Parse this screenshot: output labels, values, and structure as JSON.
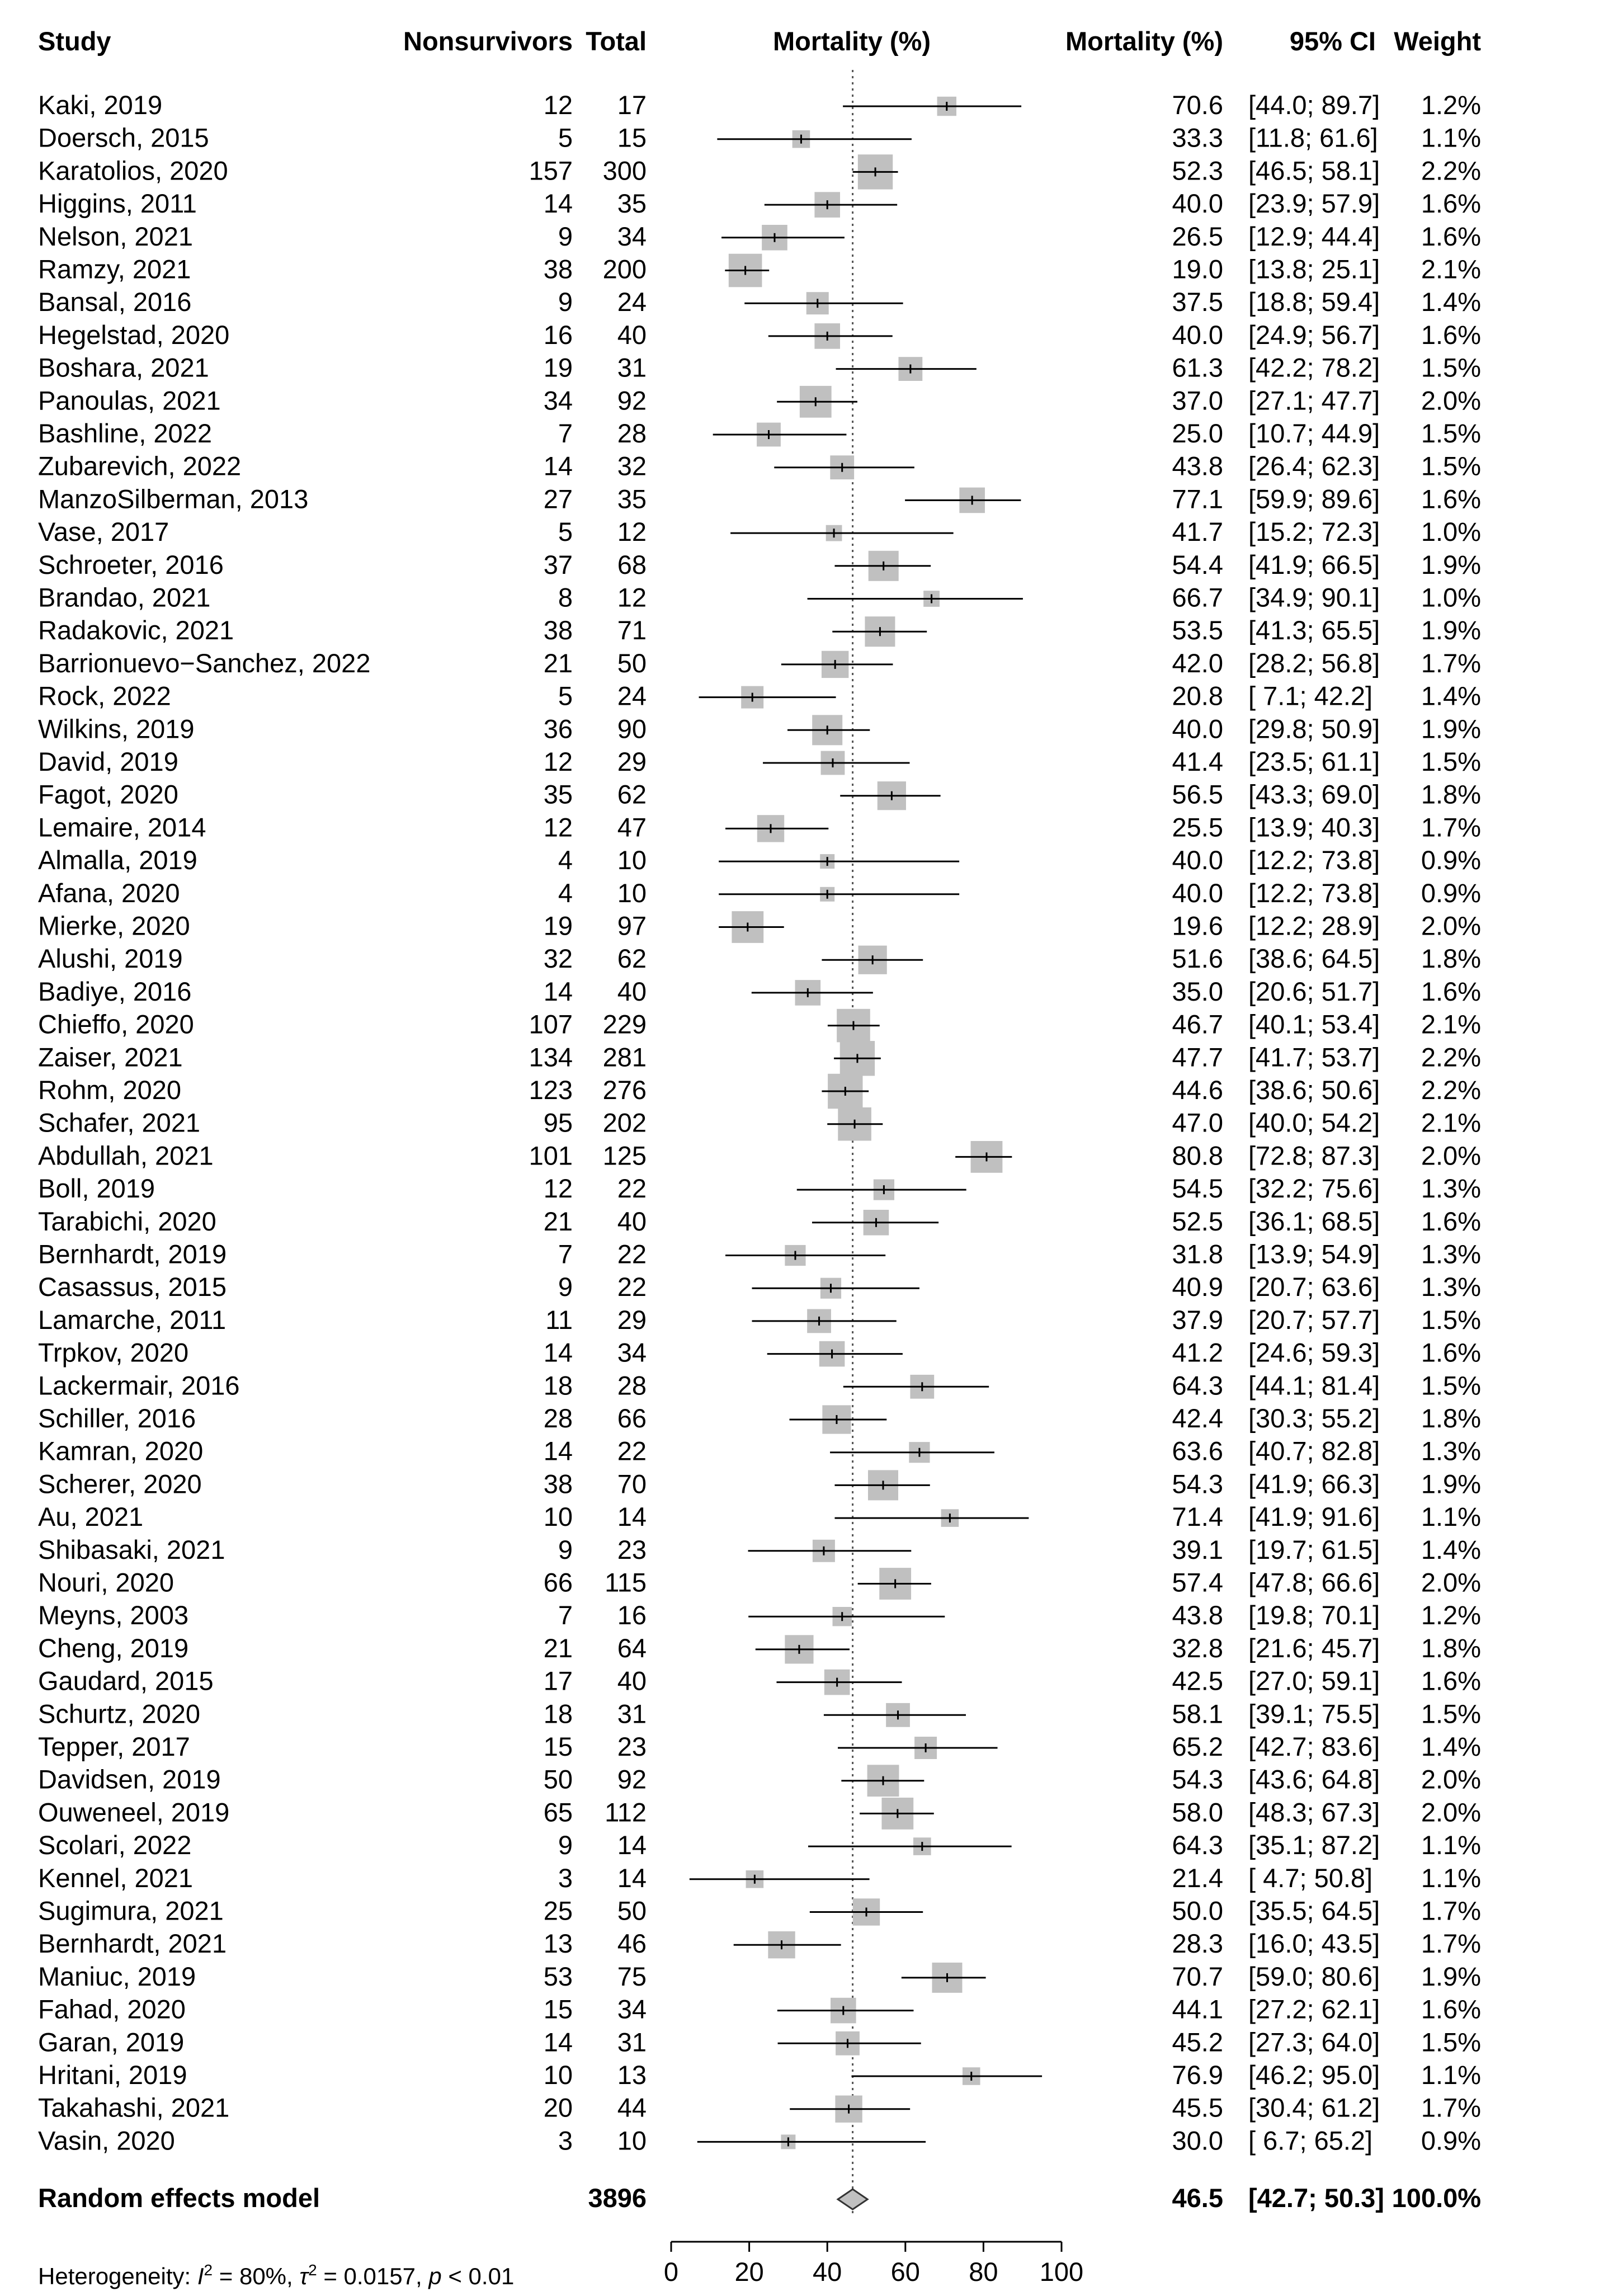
{
  "chart_data": {
    "type": "forest",
    "headers": {
      "study": "Study",
      "nonsurvivors": "Nonsurvivors",
      "total": "Total",
      "plot": "Mortality (%)",
      "estimate": "Mortality (%)",
      "ci": "95% CI",
      "weight": "Weight"
    },
    "x_axis": {
      "min": 0,
      "max": 100,
      "ticks": [
        0,
        20,
        40,
        60,
        80,
        100
      ],
      "reference_line": 46.5
    },
    "studies": [
      {
        "study": "Kaki, 2019",
        "events": "12",
        "total": "17",
        "est": 70.6,
        "lo": 44.0,
        "hi": 89.7,
        "est_text": "70.6",
        "ci_text": "[44.0; 89.7]",
        "weight_text": "1.2%"
      },
      {
        "study": "Doersch, 2015",
        "events": "5",
        "total": "15",
        "est": 33.3,
        "lo": 11.8,
        "hi": 61.6,
        "est_text": "33.3",
        "ci_text": "[11.8; 61.6]",
        "weight_text": "1.1%"
      },
      {
        "study": "Karatolios, 2020",
        "events": "157",
        "total": "300",
        "est": 52.3,
        "lo": 46.5,
        "hi": 58.1,
        "est_text": "52.3",
        "ci_text": "[46.5; 58.1]",
        "weight_text": "2.2%"
      },
      {
        "study": "Higgins, 2011",
        "events": "14",
        "total": "35",
        "est": 40.0,
        "lo": 23.9,
        "hi": 57.9,
        "est_text": "40.0",
        "ci_text": "[23.9; 57.9]",
        "weight_text": "1.6%"
      },
      {
        "study": "Nelson, 2021",
        "events": "9",
        "total": "34",
        "est": 26.5,
        "lo": 12.9,
        "hi": 44.4,
        "est_text": "26.5",
        "ci_text": "[12.9; 44.4]",
        "weight_text": "1.6%"
      },
      {
        "study": "Ramzy, 2021",
        "events": "38",
        "total": "200",
        "est": 19.0,
        "lo": 13.8,
        "hi": 25.1,
        "est_text": "19.0",
        "ci_text": "[13.8; 25.1]",
        "weight_text": "2.1%"
      },
      {
        "study": "Bansal, 2016",
        "events": "9",
        "total": "24",
        "est": 37.5,
        "lo": 18.8,
        "hi": 59.4,
        "est_text": "37.5",
        "ci_text": "[18.8; 59.4]",
        "weight_text": "1.4%"
      },
      {
        "study": "Hegelstad, 2020",
        "events": "16",
        "total": "40",
        "est": 40.0,
        "lo": 24.9,
        "hi": 56.7,
        "est_text": "40.0",
        "ci_text": "[24.9; 56.7]",
        "weight_text": "1.6%"
      },
      {
        "study": "Boshara, 2021",
        "events": "19",
        "total": "31",
        "est": 61.3,
        "lo": 42.2,
        "hi": 78.2,
        "est_text": "61.3",
        "ci_text": "[42.2; 78.2]",
        "weight_text": "1.5%"
      },
      {
        "study": "Panoulas, 2021",
        "events": "34",
        "total": "92",
        "est": 37.0,
        "lo": 27.1,
        "hi": 47.7,
        "est_text": "37.0",
        "ci_text": "[27.1; 47.7]",
        "weight_text": "2.0%"
      },
      {
        "study": "Bashline, 2022",
        "events": "7",
        "total": "28",
        "est": 25.0,
        "lo": 10.7,
        "hi": 44.9,
        "est_text": "25.0",
        "ci_text": "[10.7; 44.9]",
        "weight_text": "1.5%"
      },
      {
        "study": "Zubarevich, 2022",
        "events": "14",
        "total": "32",
        "est": 43.8,
        "lo": 26.4,
        "hi": 62.3,
        "est_text": "43.8",
        "ci_text": "[26.4; 62.3]",
        "weight_text": "1.5%"
      },
      {
        "study": "ManzoSilberman, 2013",
        "events": "27",
        "total": "35",
        "est": 77.1,
        "lo": 59.9,
        "hi": 89.6,
        "est_text": "77.1",
        "ci_text": "[59.9; 89.6]",
        "weight_text": "1.6%"
      },
      {
        "study": "Vase, 2017",
        "events": "5",
        "total": "12",
        "est": 41.7,
        "lo": 15.2,
        "hi": 72.3,
        "est_text": "41.7",
        "ci_text": "[15.2; 72.3]",
        "weight_text": "1.0%"
      },
      {
        "study": "Schroeter, 2016",
        "events": "37",
        "total": "68",
        "est": 54.4,
        "lo": 41.9,
        "hi": 66.5,
        "est_text": "54.4",
        "ci_text": "[41.9; 66.5]",
        "weight_text": "1.9%"
      },
      {
        "study": "Brandao, 2021",
        "events": "8",
        "total": "12",
        "est": 66.7,
        "lo": 34.9,
        "hi": 90.1,
        "est_text": "66.7",
        "ci_text": "[34.9; 90.1]",
        "weight_text": "1.0%"
      },
      {
        "study": "Radakovic, 2021",
        "events": "38",
        "total": "71",
        "est": 53.5,
        "lo": 41.3,
        "hi": 65.5,
        "est_text": "53.5",
        "ci_text": "[41.3; 65.5]",
        "weight_text": "1.9%"
      },
      {
        "study": "Barrionuevo−Sanchez, 2022",
        "events": "21",
        "total": "50",
        "est": 42.0,
        "lo": 28.2,
        "hi": 56.8,
        "est_text": "42.0",
        "ci_text": "[28.2; 56.8]",
        "weight_text": "1.7%"
      },
      {
        "study": "Rock, 2022",
        "events": "5",
        "total": "24",
        "est": 20.8,
        "lo": 7.1,
        "hi": 42.2,
        "est_text": "20.8",
        "ci_text": "[ 7.1; 42.2]",
        "weight_text": "1.4%"
      },
      {
        "study": "Wilkins, 2019",
        "events": "36",
        "total": "90",
        "est": 40.0,
        "lo": 29.8,
        "hi": 50.9,
        "est_text": "40.0",
        "ci_text": "[29.8; 50.9]",
        "weight_text": "1.9%"
      },
      {
        "study": "David, 2019",
        "events": "12",
        "total": "29",
        "est": 41.4,
        "lo": 23.5,
        "hi": 61.1,
        "est_text": "41.4",
        "ci_text": "[23.5; 61.1]",
        "weight_text": "1.5%"
      },
      {
        "study": "Fagot, 2020",
        "events": "35",
        "total": "62",
        "est": 56.5,
        "lo": 43.3,
        "hi": 69.0,
        "est_text": "56.5",
        "ci_text": "[43.3; 69.0]",
        "weight_text": "1.8%"
      },
      {
        "study": "Lemaire, 2014",
        "events": "12",
        "total": "47",
        "est": 25.5,
        "lo": 13.9,
        "hi": 40.3,
        "est_text": "25.5",
        "ci_text": "[13.9; 40.3]",
        "weight_text": "1.7%"
      },
      {
        "study": "Almalla, 2019",
        "events": "4",
        "total": "10",
        "est": 40.0,
        "lo": 12.2,
        "hi": 73.8,
        "est_text": "40.0",
        "ci_text": "[12.2; 73.8]",
        "weight_text": "0.9%"
      },
      {
        "study": "Afana, 2020",
        "events": "4",
        "total": "10",
        "est": 40.0,
        "lo": 12.2,
        "hi": 73.8,
        "est_text": "40.0",
        "ci_text": "[12.2; 73.8]",
        "weight_text": "0.9%"
      },
      {
        "study": "Mierke, 2020",
        "events": "19",
        "total": "97",
        "est": 19.6,
        "lo": 12.2,
        "hi": 28.9,
        "est_text": "19.6",
        "ci_text": "[12.2; 28.9]",
        "weight_text": "2.0%"
      },
      {
        "study": "Alushi, 2019",
        "events": "32",
        "total": "62",
        "est": 51.6,
        "lo": 38.6,
        "hi": 64.5,
        "est_text": "51.6",
        "ci_text": "[38.6; 64.5]",
        "weight_text": "1.8%"
      },
      {
        "study": "Badiye, 2016",
        "events": "14",
        "total": "40",
        "est": 35.0,
        "lo": 20.6,
        "hi": 51.7,
        "est_text": "35.0",
        "ci_text": "[20.6; 51.7]",
        "weight_text": "1.6%"
      },
      {
        "study": "Chieffo, 2020",
        "events": "107",
        "total": "229",
        "est": 46.7,
        "lo": 40.1,
        "hi": 53.4,
        "est_text": "46.7",
        "ci_text": "[40.1; 53.4]",
        "weight_text": "2.1%"
      },
      {
        "study": "Zaiser, 2021",
        "events": "134",
        "total": "281",
        "est": 47.7,
        "lo": 41.7,
        "hi": 53.7,
        "est_text": "47.7",
        "ci_text": "[41.7; 53.7]",
        "weight_text": "2.2%"
      },
      {
        "study": "Rohm, 2020",
        "events": "123",
        "total": "276",
        "est": 44.6,
        "lo": 38.6,
        "hi": 50.6,
        "est_text": "44.6",
        "ci_text": "[38.6; 50.6]",
        "weight_text": "2.2%"
      },
      {
        "study": "Schafer, 2021",
        "events": "95",
        "total": "202",
        "est": 47.0,
        "lo": 40.0,
        "hi": 54.2,
        "est_text": "47.0",
        "ci_text": "[40.0; 54.2]",
        "weight_text": "2.1%"
      },
      {
        "study": "Abdullah, 2021",
        "events": "101",
        "total": "125",
        "est": 80.8,
        "lo": 72.8,
        "hi": 87.3,
        "est_text": "80.8",
        "ci_text": "[72.8; 87.3]",
        "weight_text": "2.0%"
      },
      {
        "study": "Boll, 2019",
        "events": "12",
        "total": "22",
        "est": 54.5,
        "lo": 32.2,
        "hi": 75.6,
        "est_text": "54.5",
        "ci_text": "[32.2; 75.6]",
        "weight_text": "1.3%"
      },
      {
        "study": "Tarabichi, 2020",
        "events": "21",
        "total": "40",
        "est": 52.5,
        "lo": 36.1,
        "hi": 68.5,
        "est_text": "52.5",
        "ci_text": "[36.1; 68.5]",
        "weight_text": "1.6%"
      },
      {
        "study": "Bernhardt, 2019",
        "events": "7",
        "total": "22",
        "est": 31.8,
        "lo": 13.9,
        "hi": 54.9,
        "est_text": "31.8",
        "ci_text": "[13.9; 54.9]",
        "weight_text": "1.3%"
      },
      {
        "study": "Casassus, 2015",
        "events": "9",
        "total": "22",
        "est": 40.9,
        "lo": 20.7,
        "hi": 63.6,
        "est_text": "40.9",
        "ci_text": "[20.7; 63.6]",
        "weight_text": "1.3%"
      },
      {
        "study": "Lamarche, 2011",
        "events": "11",
        "total": "29",
        "est": 37.9,
        "lo": 20.7,
        "hi": 57.7,
        "est_text": "37.9",
        "ci_text": "[20.7; 57.7]",
        "weight_text": "1.5%"
      },
      {
        "study": "Trpkov, 2020",
        "events": "14",
        "total": "34",
        "est": 41.2,
        "lo": 24.6,
        "hi": 59.3,
        "est_text": "41.2",
        "ci_text": "[24.6; 59.3]",
        "weight_text": "1.6%"
      },
      {
        "study": "Lackermair, 2016",
        "events": "18",
        "total": "28",
        "est": 64.3,
        "lo": 44.1,
        "hi": 81.4,
        "est_text": "64.3",
        "ci_text": "[44.1; 81.4]",
        "weight_text": "1.5%"
      },
      {
        "study": "Schiller, 2016",
        "events": "28",
        "total": "66",
        "est": 42.4,
        "lo": 30.3,
        "hi": 55.2,
        "est_text": "42.4",
        "ci_text": "[30.3; 55.2]",
        "weight_text": "1.8%"
      },
      {
        "study": "Kamran, 2020",
        "events": "14",
        "total": "22",
        "est": 63.6,
        "lo": 40.7,
        "hi": 82.8,
        "est_text": "63.6",
        "ci_text": "[40.7; 82.8]",
        "weight_text": "1.3%"
      },
      {
        "study": "Scherer, 2020",
        "events": "38",
        "total": "70",
        "est": 54.3,
        "lo": 41.9,
        "hi": 66.3,
        "est_text": "54.3",
        "ci_text": "[41.9; 66.3]",
        "weight_text": "1.9%"
      },
      {
        "study": "Au, 2021",
        "events": "10",
        "total": "14",
        "est": 71.4,
        "lo": 41.9,
        "hi": 91.6,
        "est_text": "71.4",
        "ci_text": "[41.9; 91.6]",
        "weight_text": "1.1%"
      },
      {
        "study": "Shibasaki, 2021",
        "events": "9",
        "total": "23",
        "est": 39.1,
        "lo": 19.7,
        "hi": 61.5,
        "est_text": "39.1",
        "ci_text": "[19.7; 61.5]",
        "weight_text": "1.4%"
      },
      {
        "study": "Nouri, 2020",
        "events": "66",
        "total": "115",
        "est": 57.4,
        "lo": 47.8,
        "hi": 66.6,
        "est_text": "57.4",
        "ci_text": "[47.8; 66.6]",
        "weight_text": "2.0%"
      },
      {
        "study": "Meyns, 2003",
        "events": "7",
        "total": "16",
        "est": 43.8,
        "lo": 19.8,
        "hi": 70.1,
        "est_text": "43.8",
        "ci_text": "[19.8; 70.1]",
        "weight_text": "1.2%"
      },
      {
        "study": "Cheng, 2019",
        "events": "21",
        "total": "64",
        "est": 32.8,
        "lo": 21.6,
        "hi": 45.7,
        "est_text": "32.8",
        "ci_text": "[21.6; 45.7]",
        "weight_text": "1.8%"
      },
      {
        "study": "Gaudard, 2015",
        "events": "17",
        "total": "40",
        "est": 42.5,
        "lo": 27.0,
        "hi": 59.1,
        "est_text": "42.5",
        "ci_text": "[27.0; 59.1]",
        "weight_text": "1.6%"
      },
      {
        "study": "Schurtz, 2020",
        "events": "18",
        "total": "31",
        "est": 58.1,
        "lo": 39.1,
        "hi": 75.5,
        "est_text": "58.1",
        "ci_text": "[39.1; 75.5]",
        "weight_text": "1.5%"
      },
      {
        "study": "Tepper, 2017",
        "events": "15",
        "total": "23",
        "est": 65.2,
        "lo": 42.7,
        "hi": 83.6,
        "est_text": "65.2",
        "ci_text": "[42.7; 83.6]",
        "weight_text": "1.4%"
      },
      {
        "study": "Davidsen, 2019",
        "events": "50",
        "total": "92",
        "est": 54.3,
        "lo": 43.6,
        "hi": 64.8,
        "est_text": "54.3",
        "ci_text": "[43.6; 64.8]",
        "weight_text": "2.0%"
      },
      {
        "study": "Ouweneel, 2019",
        "events": "65",
        "total": "112",
        "est": 58.0,
        "lo": 48.3,
        "hi": 67.3,
        "est_text": "58.0",
        "ci_text": "[48.3; 67.3]",
        "weight_text": "2.0%"
      },
      {
        "study": "Scolari, 2022",
        "events": "9",
        "total": "14",
        "est": 64.3,
        "lo": 35.1,
        "hi": 87.2,
        "est_text": "64.3",
        "ci_text": "[35.1; 87.2]",
        "weight_text": "1.1%"
      },
      {
        "study": "Kennel, 2021",
        "events": "3",
        "total": "14",
        "est": 21.4,
        "lo": 4.7,
        "hi": 50.8,
        "est_text": "21.4",
        "ci_text": "[ 4.7; 50.8]",
        "weight_text": "1.1%"
      },
      {
        "study": "Sugimura, 2021",
        "events": "25",
        "total": "50",
        "est": 50.0,
        "lo": 35.5,
        "hi": 64.5,
        "est_text": "50.0",
        "ci_text": "[35.5; 64.5]",
        "weight_text": "1.7%"
      },
      {
        "study": "Bernhardt, 2021",
        "events": "13",
        "total": "46",
        "est": 28.3,
        "lo": 16.0,
        "hi": 43.5,
        "est_text": "28.3",
        "ci_text": "[16.0; 43.5]",
        "weight_text": "1.7%"
      },
      {
        "study": "Maniuc, 2019",
        "events": "53",
        "total": "75",
        "est": 70.7,
        "lo": 59.0,
        "hi": 80.6,
        "est_text": "70.7",
        "ci_text": "[59.0; 80.6]",
        "weight_text": "1.9%"
      },
      {
        "study": "Fahad, 2020",
        "events": "15",
        "total": "34",
        "est": 44.1,
        "lo": 27.2,
        "hi": 62.1,
        "est_text": "44.1",
        "ci_text": "[27.2; 62.1]",
        "weight_text": "1.6%"
      },
      {
        "study": "Garan, 2019",
        "events": "14",
        "total": "31",
        "est": 45.2,
        "lo": 27.3,
        "hi": 64.0,
        "est_text": "45.2",
        "ci_text": "[27.3; 64.0]",
        "weight_text": "1.5%"
      },
      {
        "study": "Hritani, 2019",
        "events": "10",
        "total": "13",
        "est": 76.9,
        "lo": 46.2,
        "hi": 95.0,
        "est_text": "76.9",
        "ci_text": "[46.2; 95.0]",
        "weight_text": "1.1%"
      },
      {
        "study": "Takahashi, 2021",
        "events": "20",
        "total": "44",
        "est": 45.5,
        "lo": 30.4,
        "hi": 61.2,
        "est_text": "45.5",
        "ci_text": "[30.4; 61.2]",
        "weight_text": "1.7%"
      },
      {
        "study": "Vasin, 2020",
        "events": "3",
        "total": "10",
        "est": 30.0,
        "lo": 6.7,
        "hi": 65.2,
        "est_text": "30.0",
        "ci_text": "[ 6.7; 65.2]",
        "weight_text": "0.9%"
      }
    ],
    "pooled": {
      "label": "Random effects model",
      "total": "3896",
      "est": 46.5,
      "lo": 42.7,
      "hi": 50.3,
      "est_text": "46.5",
      "ci_text": "[42.7; 50.3]",
      "weight_text": "100.0%"
    },
    "heterogeneity": {
      "prefix": "Heterogeneity: ",
      "i2_symbol": "I",
      "i2_value": " = 80%, ",
      "tau_symbol": "τ",
      "tau_value": " = 0.0157, ",
      "p_symbol": "p",
      "p_value": " < 0.01"
    }
  },
  "colors": {
    "square": "#c0c0c0",
    "line": "#000000",
    "reference": "#555555"
  }
}
